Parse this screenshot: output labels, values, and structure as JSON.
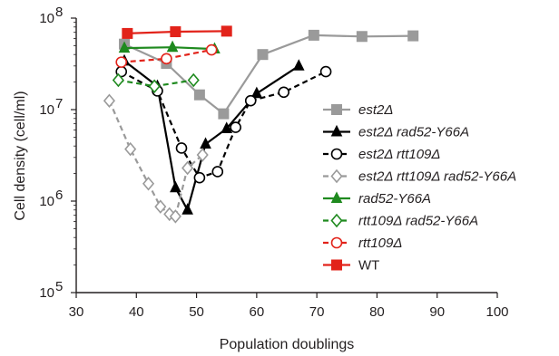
{
  "chart_data": {
    "type": "line",
    "xlabel": "Population doublings",
    "ylabel": "Cell density (cell/ml)",
    "xlim": [
      30,
      100
    ],
    "ylim": [
      100000,
      100000000
    ],
    "y_scale": "log",
    "x_ticks": [
      "30",
      "40",
      "50",
      "60",
      "70",
      "80",
      "90",
      "100"
    ],
    "y_ticks": [
      {
        "base": "10",
        "exp": "5",
        "value": 100000
      },
      {
        "base": "10",
        "exp": "6",
        "value": 1000000
      },
      {
        "base": "10",
        "exp": "7",
        "value": 10000000
      },
      {
        "base": "10",
        "exp": "8",
        "value": 100000000
      }
    ],
    "grid": false,
    "legend_position": "right",
    "series": [
      {
        "name": "est2Δ",
        "italic": true,
        "color": "#9a9a9a",
        "marker": "square-filled",
        "dashed": false,
        "points": [
          [
            38,
            52000000
          ],
          [
            45,
            32000000
          ],
          [
            50.5,
            14500000
          ],
          [
            54.5,
            9000000
          ],
          [
            61,
            40000000
          ],
          [
            69.5,
            65000000
          ],
          [
            77.5,
            63000000
          ],
          [
            86,
            64000000
          ]
        ]
      },
      {
        "name": "est2Δ rad52-Y66A",
        "italic": true,
        "color": "#000000",
        "marker": "triangle-filled",
        "dashed": false,
        "points": [
          [
            38,
            34000000
          ],
          [
            43.5,
            18000000
          ],
          [
            46.5,
            1400000
          ],
          [
            48.5,
            800000
          ],
          [
            51.5,
            4200000
          ],
          [
            55,
            6200000
          ],
          [
            60,
            15000000
          ],
          [
            67,
            30000000
          ]
        ]
      },
      {
        "name": "est2Δ rtt109Δ",
        "italic": true,
        "color": "#000000",
        "marker": "circle-open",
        "dashed": true,
        "points": [
          [
            37.5,
            26000000
          ],
          [
            43.5,
            16000000
          ],
          [
            47.5,
            3800000
          ],
          [
            50.5,
            1800000
          ],
          [
            53.5,
            2100000
          ],
          [
            56.5,
            6400000
          ],
          [
            59,
            12500000
          ],
          [
            64.5,
            15500000
          ],
          [
            71.5,
            26000000
          ]
        ]
      },
      {
        "name": "est2Δ rtt109Δ rad52-Y66A",
        "italic": true,
        "color": "#9a9a9a",
        "marker": "diamond-open",
        "dashed": true,
        "points": [
          [
            35.5,
            12500000
          ],
          [
            39,
            3700000
          ],
          [
            42,
            1550000
          ],
          [
            44,
            870000
          ],
          [
            45.5,
            720000
          ],
          [
            46.5,
            680000
          ],
          [
            48.5,
            2300000
          ],
          [
            51,
            3200000
          ]
        ]
      },
      {
        "name": "rad52-Y66A",
        "italic": true,
        "color": "#1f8a1f",
        "marker": "triangle-filled",
        "dashed": false,
        "points": [
          [
            38,
            47000000
          ],
          [
            46,
            48000000
          ],
          [
            53,
            46000000
          ]
        ]
      },
      {
        "name": "rtt109Δ rad52-Y66A",
        "italic": true,
        "color": "#1f8a1f",
        "marker": "diamond-open",
        "dashed": true,
        "points": [
          [
            37,
            21000000
          ],
          [
            43,
            18000000
          ],
          [
            49.5,
            21000000
          ]
        ]
      },
      {
        "name": "rtt109Δ",
        "italic": true,
        "color": "#e2231a",
        "marker": "circle-open",
        "dashed": true,
        "points": [
          [
            37.5,
            33000000
          ],
          [
            45,
            36000000
          ],
          [
            52.5,
            45000000
          ]
        ]
      },
      {
        "name": "WT",
        "italic": false,
        "color": "#e2231a",
        "marker": "square-filled",
        "dashed": false,
        "points": [
          [
            38.5,
            68000000
          ],
          [
            46.5,
            71000000
          ],
          [
            55,
            72000000
          ]
        ]
      }
    ]
  }
}
